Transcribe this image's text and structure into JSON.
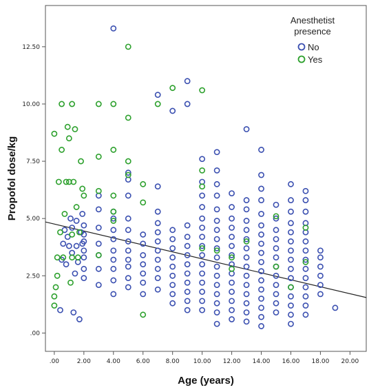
{
  "chart_data": {
    "type": "scatter",
    "xlabel": "Age (years)",
    "ylabel": "Propofol dose/kg",
    "xlim": [
      -0.6,
      21.1
    ],
    "ylim": [
      -0.8,
      14.3
    ],
    "x_ticks": [
      ".00",
      "2.00",
      "4.00",
      "6.00",
      "8.00",
      "10.00",
      "12.00",
      "14.00",
      "16.00",
      "18.00",
      "20.00"
    ],
    "y_ticks": [
      ".00",
      "2.50",
      "5.00",
      "7.50",
      "10.00",
      "12.50"
    ],
    "grid": false,
    "legend": {
      "title_line1": "Anesthetist",
      "title_line2": "presence",
      "placement": "top-right",
      "entries": [
        "No",
        "Yes"
      ]
    },
    "fit_line": {
      "x1": -0.6,
      "y1": 4.85,
      "x2": 21.1,
      "y2": 1.55,
      "color": "#222222"
    },
    "series": [
      {
        "name": "No",
        "color": "#3a4fb0",
        "points": [
          [
            0.4,
            1.0
          ],
          [
            0.5,
            3.2
          ],
          [
            0.6,
            3.9
          ],
          [
            0.7,
            4.5
          ],
          [
            0.8,
            3.0
          ],
          [
            0.9,
            4.2
          ],
          [
            1.0,
            3.8
          ],
          [
            1.1,
            5.0
          ],
          [
            1.2,
            3.5
          ],
          [
            1.2,
            4.6
          ],
          [
            1.3,
            0.9
          ],
          [
            1.4,
            2.6
          ],
          [
            1.5,
            3.8
          ],
          [
            1.5,
            4.9
          ],
          [
            1.6,
            3.1
          ],
          [
            1.7,
            0.6
          ],
          [
            1.8,
            4.4
          ],
          [
            1.9,
            5.2
          ],
          [
            1.9,
            3.9
          ],
          [
            2.0,
            2.4
          ],
          [
            2.0,
            2.8
          ],
          [
            2.0,
            3.3
          ],
          [
            2.0,
            3.6
          ],
          [
            2.0,
            4.0
          ],
          [
            2.0,
            4.3
          ],
          [
            2.0,
            4.7
          ],
          [
            3.0,
            2.1
          ],
          [
            3.0,
            2.8
          ],
          [
            3.0,
            3.4
          ],
          [
            3.0,
            3.9
          ],
          [
            3.0,
            4.6
          ],
          [
            3.0,
            5.4
          ],
          [
            3.0,
            6.0
          ],
          [
            4.0,
            13.3
          ],
          [
            4.0,
            1.7
          ],
          [
            4.0,
            2.3
          ],
          [
            4.0,
            2.8
          ],
          [
            4.0,
            3.2
          ],
          [
            4.0,
            3.6
          ],
          [
            4.0,
            4.1
          ],
          [
            4.0,
            4.5
          ],
          [
            4.0,
            5.0
          ],
          [
            4.0,
            5.3
          ],
          [
            5.0,
            2.0
          ],
          [
            5.0,
            2.4
          ],
          [
            5.0,
            2.9
          ],
          [
            5.0,
            3.2
          ],
          [
            5.0,
            3.6
          ],
          [
            5.0,
            4.0
          ],
          [
            5.0,
            4.5
          ],
          [
            5.0,
            5.0
          ],
          [
            5.0,
            6.0
          ],
          [
            5.0,
            6.7
          ],
          [
            5.0,
            7.0
          ],
          [
            6.0,
            1.7
          ],
          [
            6.0,
            2.2
          ],
          [
            6.0,
            2.6
          ],
          [
            6.0,
            3.0
          ],
          [
            6.0,
            3.4
          ],
          [
            6.0,
            3.9
          ],
          [
            6.0,
            4.3
          ],
          [
            7.0,
            10.4
          ],
          [
            7.0,
            6.4
          ],
          [
            7.0,
            1.9
          ],
          [
            7.0,
            2.4
          ],
          [
            7.0,
            2.8
          ],
          [
            7.0,
            3.2
          ],
          [
            7.0,
            3.6
          ],
          [
            7.0,
            4.0
          ],
          [
            7.0,
            4.4
          ],
          [
            7.0,
            4.8
          ],
          [
            7.0,
            5.3
          ],
          [
            8.0,
            9.7
          ],
          [
            8.0,
            1.3
          ],
          [
            8.0,
            1.7
          ],
          [
            8.0,
            2.1
          ],
          [
            8.0,
            2.5
          ],
          [
            8.0,
            2.9
          ],
          [
            8.0,
            3.3
          ],
          [
            8.0,
            3.7
          ],
          [
            8.0,
            4.1
          ],
          [
            8.0,
            4.5
          ],
          [
            9.0,
            11.0
          ],
          [
            9.0,
            10.0
          ],
          [
            9.0,
            1.0
          ],
          [
            9.0,
            1.4
          ],
          [
            9.0,
            1.8
          ],
          [
            9.0,
            2.2
          ],
          [
            9.0,
            2.6
          ],
          [
            9.0,
            3.0
          ],
          [
            9.0,
            3.4
          ],
          [
            9.0,
            3.8
          ],
          [
            9.0,
            4.2
          ],
          [
            9.0,
            4.7
          ],
          [
            10.0,
            7.6
          ],
          [
            10.0,
            6.6
          ],
          [
            10.0,
            1.0
          ],
          [
            10.0,
            1.4
          ],
          [
            10.0,
            1.8
          ],
          [
            10.0,
            2.2
          ],
          [
            10.0,
            2.6
          ],
          [
            10.0,
            3.0
          ],
          [
            10.0,
            3.4
          ],
          [
            10.0,
            3.8
          ],
          [
            10.0,
            4.2
          ],
          [
            10.0,
            4.6
          ],
          [
            10.0,
            5.0
          ],
          [
            10.0,
            5.5
          ],
          [
            10.0,
            6.0
          ],
          [
            11.0,
            7.9
          ],
          [
            11.0,
            7.1
          ],
          [
            11.0,
            0.4
          ],
          [
            11.0,
            0.9
          ],
          [
            11.0,
            1.3
          ],
          [
            11.0,
            1.7
          ],
          [
            11.0,
            2.1
          ],
          [
            11.0,
            2.5
          ],
          [
            11.0,
            2.9
          ],
          [
            11.0,
            3.3
          ],
          [
            11.0,
            3.7
          ],
          [
            11.0,
            4.1
          ],
          [
            11.0,
            4.5
          ],
          [
            11.0,
            4.9
          ],
          [
            11.0,
            5.4
          ],
          [
            11.0,
            6.0
          ],
          [
            11.0,
            6.5
          ],
          [
            12.0,
            0.6
          ],
          [
            12.0,
            1.0
          ],
          [
            12.0,
            1.4
          ],
          [
            12.0,
            1.8
          ],
          [
            12.0,
            2.2
          ],
          [
            12.0,
            2.6
          ],
          [
            12.0,
            3.0
          ],
          [
            12.0,
            3.4
          ],
          [
            12.0,
            3.8
          ],
          [
            12.0,
            4.2
          ],
          [
            12.0,
            4.6
          ],
          [
            12.0,
            5.0
          ],
          [
            12.0,
            5.5
          ],
          [
            12.0,
            6.1
          ],
          [
            13.0,
            8.9
          ],
          [
            13.0,
            0.5
          ],
          [
            13.0,
            0.9
          ],
          [
            13.0,
            1.3
          ],
          [
            13.0,
            1.7
          ],
          [
            13.0,
            2.1
          ],
          [
            13.0,
            2.5
          ],
          [
            13.0,
            2.9
          ],
          [
            13.0,
            3.3
          ],
          [
            13.0,
            3.7
          ],
          [
            13.0,
            4.1
          ],
          [
            13.0,
            4.5
          ],
          [
            13.0,
            4.9
          ],
          [
            13.0,
            5.4
          ],
          [
            13.0,
            5.8
          ],
          [
            14.0,
            8.0
          ],
          [
            14.0,
            6.9
          ],
          [
            14.0,
            0.3
          ],
          [
            14.0,
            0.7
          ],
          [
            14.0,
            1.1
          ],
          [
            14.0,
            1.5
          ],
          [
            14.0,
            1.9
          ],
          [
            14.0,
            2.3
          ],
          [
            14.0,
            2.7
          ],
          [
            14.0,
            3.1
          ],
          [
            14.0,
            3.5
          ],
          [
            14.0,
            3.9
          ],
          [
            14.0,
            4.3
          ],
          [
            14.0,
            4.7
          ],
          [
            14.0,
            5.2
          ],
          [
            14.0,
            5.8
          ],
          [
            14.0,
            6.3
          ],
          [
            15.0,
            0.9
          ],
          [
            15.0,
            1.3
          ],
          [
            15.0,
            1.7
          ],
          [
            15.0,
            2.1
          ],
          [
            15.0,
            2.5
          ],
          [
            15.0,
            2.9
          ],
          [
            15.0,
            3.3
          ],
          [
            15.0,
            3.7
          ],
          [
            15.0,
            4.1
          ],
          [
            15.0,
            4.5
          ],
          [
            15.0,
            5.0
          ],
          [
            15.0,
            5.6
          ],
          [
            16.0,
            6.5
          ],
          [
            16.0,
            0.4
          ],
          [
            16.0,
            0.8
          ],
          [
            16.0,
            1.2
          ],
          [
            16.0,
            1.6
          ],
          [
            16.0,
            2.0
          ],
          [
            16.0,
            2.4
          ],
          [
            16.0,
            2.8
          ],
          [
            16.0,
            3.2
          ],
          [
            16.0,
            3.6
          ],
          [
            16.0,
            4.0
          ],
          [
            16.0,
            4.4
          ],
          [
            16.0,
            4.8
          ],
          [
            16.0,
            5.3
          ],
          [
            16.0,
            5.8
          ],
          [
            17.0,
            6.2
          ],
          [
            17.0,
            0.8
          ],
          [
            17.0,
            1.2
          ],
          [
            17.0,
            1.6
          ],
          [
            17.0,
            2.0
          ],
          [
            17.0,
            2.4
          ],
          [
            17.0,
            2.8
          ],
          [
            17.0,
            3.2
          ],
          [
            17.0,
            3.6
          ],
          [
            17.0,
            4.0
          ],
          [
            17.0,
            4.4
          ],
          [
            17.0,
            4.8
          ],
          [
            17.0,
            5.3
          ],
          [
            17.0,
            5.8
          ],
          [
            18.0,
            1.7
          ],
          [
            18.0,
            2.1
          ],
          [
            18.0,
            2.5
          ],
          [
            18.0,
            2.9
          ],
          [
            18.0,
            3.3
          ],
          [
            18.0,
            3.6
          ],
          [
            19.0,
            1.1
          ]
        ]
      },
      {
        "name": "Yes",
        "color": "#2ca02c",
        "points": [
          [
            0.0,
            8.7
          ],
          [
            0.0,
            1.2
          ],
          [
            0.0,
            1.6
          ],
          [
            0.1,
            2.0
          ],
          [
            0.2,
            2.5
          ],
          [
            0.2,
            3.3
          ],
          [
            0.3,
            6.6
          ],
          [
            0.4,
            4.4
          ],
          [
            0.5,
            8.0
          ],
          [
            0.5,
            10.0
          ],
          [
            0.6,
            3.3
          ],
          [
            0.7,
            5.2
          ],
          [
            0.8,
            6.6
          ],
          [
            0.9,
            9.0
          ],
          [
            1.0,
            8.5
          ],
          [
            1.0,
            6.6
          ],
          [
            1.1,
            2.2
          ],
          [
            1.2,
            10.0
          ],
          [
            1.2,
            4.3
          ],
          [
            1.2,
            3.3
          ],
          [
            1.3,
            6.6
          ],
          [
            1.4,
            8.9
          ],
          [
            1.5,
            5.5
          ],
          [
            1.6,
            3.3
          ],
          [
            1.7,
            4.4
          ],
          [
            1.8,
            7.5
          ],
          [
            1.9,
            6.3
          ],
          [
            2.0,
            6.0
          ],
          [
            3.0,
            10.0
          ],
          [
            3.0,
            7.7
          ],
          [
            3.0,
            6.2
          ],
          [
            3.0,
            3.4
          ],
          [
            4.0,
            10.0
          ],
          [
            4.0,
            8.0
          ],
          [
            4.0,
            6.0
          ],
          [
            4.0,
            5.3
          ],
          [
            4.0,
            4.9
          ],
          [
            5.0,
            12.5
          ],
          [
            5.0,
            9.4
          ],
          [
            5.0,
            7.5
          ],
          [
            5.0,
            6.9
          ],
          [
            6.0,
            6.5
          ],
          [
            6.0,
            5.7
          ],
          [
            6.0,
            0.8
          ],
          [
            7.0,
            10.0
          ],
          [
            8.0,
            10.7
          ],
          [
            10.0,
            10.6
          ],
          [
            10.0,
            7.1
          ],
          [
            10.0,
            6.4
          ],
          [
            10.0,
            3.7
          ],
          [
            11.0,
            3.6
          ],
          [
            12.0,
            3.3
          ],
          [
            12.0,
            2.8
          ],
          [
            13.0,
            4.0
          ],
          [
            15.0,
            5.1
          ],
          [
            15.0,
            2.9
          ],
          [
            16.0,
            2.0
          ],
          [
            17.0,
            4.6
          ],
          [
            17.0,
            3.1
          ]
        ]
      }
    ]
  }
}
